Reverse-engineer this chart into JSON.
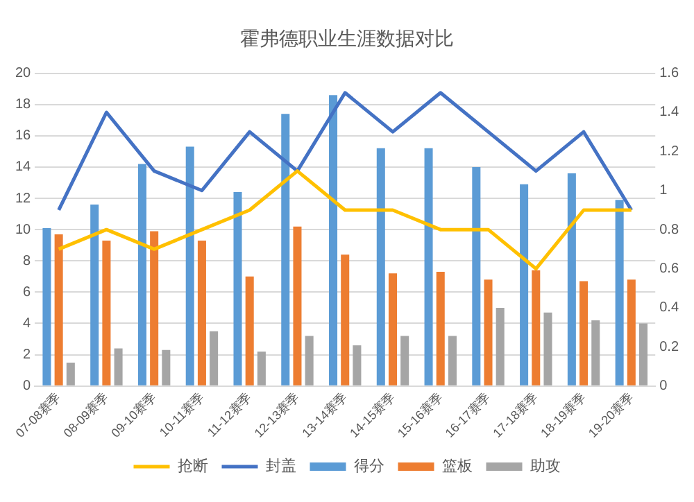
{
  "chart_data": {
    "type": "bar",
    "title": "霍弗德职业生涯数据对比",
    "categories": [
      "07-08赛季",
      "08-09赛季",
      "09-10赛季",
      "10-11赛季",
      "11-12赛季",
      "12-13赛季",
      "13-14赛季",
      "14-15赛季",
      "15-16赛季",
      "16-17赛季",
      "17-18赛季",
      "18-19赛季",
      "19-20赛季"
    ],
    "series": [
      {
        "name": "得分",
        "color": "#5b9bd5",
        "values": [
          10.1,
          11.6,
          14.2,
          15.3,
          12.4,
          17.4,
          18.6,
          15.2,
          15.2,
          14.0,
          12.9,
          13.6,
          11.9
        ]
      },
      {
        "name": "篮板",
        "color": "#ed7d31",
        "values": [
          9.7,
          9.3,
          9.9,
          9.3,
          7.0,
          10.2,
          8.4,
          7.2,
          7.3,
          6.8,
          7.4,
          6.7,
          6.8
        ]
      },
      {
        "name": "助攻",
        "color": "#a5a5a5",
        "values": [
          1.5,
          2.4,
          2.3,
          3.5,
          2.2,
          3.2,
          2.6,
          3.2,
          3.2,
          5.0,
          4.7,
          4.2,
          4.0
        ]
      },
      {
        "name": "抢断",
        "type": "line",
        "axis": "y2",
        "color": "#ffc000",
        "values": [
          0.7,
          0.8,
          0.7,
          0.8,
          0.9,
          1.1,
          0.9,
          0.9,
          0.8,
          0.8,
          0.6,
          0.9,
          0.9
        ]
      },
      {
        "name": "封盖",
        "type": "line",
        "axis": "y2",
        "color": "#4472c4",
        "values": [
          0.9,
          1.4,
          1.1,
          1.0,
          1.3,
          1.1,
          1.5,
          1.3,
          1.5,
          1.3,
          1.1,
          1.3,
          0.9
        ]
      }
    ],
    "ylim": [
      0,
      20
    ],
    "yticks": [
      0,
      2,
      4,
      6,
      8,
      10,
      12,
      14,
      16,
      18,
      20
    ],
    "y2lim": [
      0,
      1.6
    ],
    "y2ticks": [
      0,
      0.2,
      0.4,
      0.6,
      0.8,
      1,
      1.2,
      1.4,
      1.6
    ],
    "grid": "y",
    "legend": "bottom",
    "marker": "none"
  }
}
